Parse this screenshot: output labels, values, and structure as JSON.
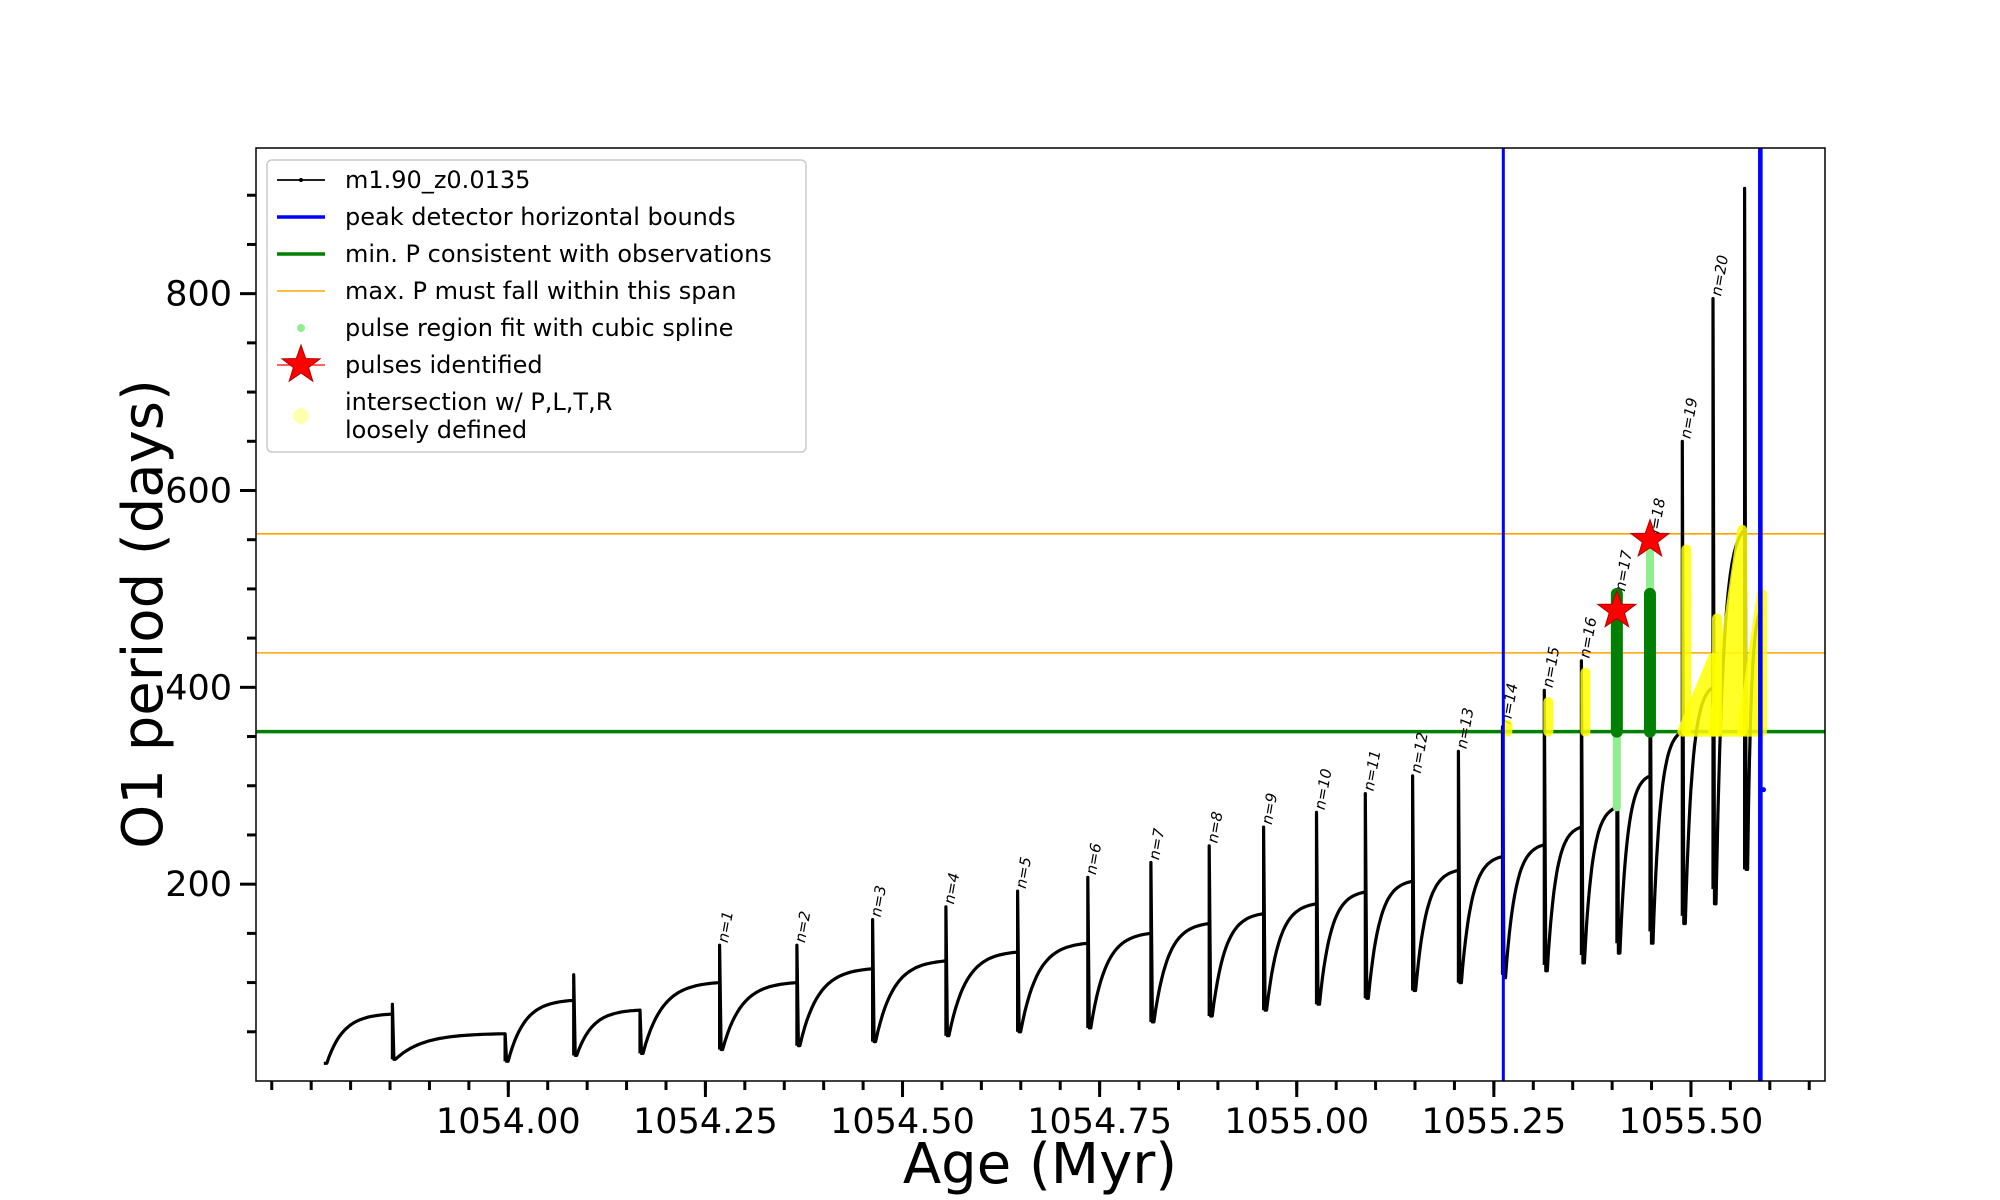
{
  "chart_data": {
    "type": "line",
    "title": "",
    "xlabel": "Age (Myr)",
    "ylabel": "O1 period (days)",
    "xlim": [
      1053.68,
      1055.67
    ],
    "ylim": [
      0,
      948
    ],
    "x_ticks": [
      1054.0,
      1054.25,
      1054.5,
      1054.75,
      1055.0,
      1055.25,
      1055.5
    ],
    "x_tick_labels": [
      "1054.00",
      "1054.25",
      "1054.50",
      "1054.75",
      "1055.00",
      "1055.25",
      "1055.50"
    ],
    "y_ticks": [
      200,
      400,
      600,
      800
    ],
    "y_tick_labels": [
      "200",
      "400",
      "600",
      "800"
    ],
    "grid": false,
    "legend_position": "upper-left",
    "colors": {
      "track": "#000000",
      "bounds": "#0000ff",
      "min_p": "#008000",
      "max_p": "#ffa500",
      "spline": "#90ee90",
      "spline_dark": "#008000",
      "star": "#ff0000",
      "loose": "#ffff00"
    },
    "legend": [
      {
        "label": "m1.90_z0.0135",
        "kind": "line-marker",
        "color": "#000000"
      },
      {
        "label": "peak detector horizontal bounds",
        "kind": "line",
        "color": "#0000ff"
      },
      {
        "label": "min. P consistent with observations",
        "kind": "line",
        "color": "#008000"
      },
      {
        "label": "max. P must fall within this span",
        "kind": "thin-line",
        "color": "#ffa500"
      },
      {
        "label": "pulse region fit with cubic spline",
        "kind": "dot",
        "color": "#90ee90"
      },
      {
        "label": "pulses identified",
        "kind": "star",
        "color": "#ff0000"
      },
      {
        "label": "intersection w/ P,L,T,R",
        "label2": "loosely defined",
        "kind": "dot-big",
        "color": "#ffffb0"
      }
    ],
    "pulses": [
      {
        "n": "",
        "t0": 1053.766,
        "t1": 1053.853,
        "base": 18,
        "end": 68,
        "peak": 0,
        "min": 18
      },
      {
        "n": "",
        "t0": 1053.853,
        "t1": 1053.996,
        "base": 22,
        "end": 48,
        "peak": 78,
        "min": 22
      },
      {
        "n": "",
        "t0": 1053.996,
        "t1": 1054.083,
        "base": 20,
        "end": 82,
        "peak": 48,
        "min": 20
      },
      {
        "n": "",
        "t0": 1054.083,
        "t1": 1054.167,
        "base": 26,
        "end": 72,
        "peak": 108,
        "min": 26
      },
      {
        "n": "",
        "t0": 1054.167,
        "t1": 1054.268,
        "base": 28,
        "end": 100,
        "peak": 72,
        "min": 28
      },
      {
        "n": "n=1",
        "t0": 1054.268,
        "t1": 1054.366,
        "base": 32,
        "end": 100,
        "peak": 138,
        "min": 32
      },
      {
        "n": "n=2",
        "t0": 1054.366,
        "t1": 1054.462,
        "base": 36,
        "end": 114,
        "peak": 138,
        "min": 36
      },
      {
        "n": "n=3",
        "t0": 1054.462,
        "t1": 1054.555,
        "base": 40,
        "end": 122,
        "peak": 164,
        "min": 40
      },
      {
        "n": "n=4",
        "t0": 1054.555,
        "t1": 1054.646,
        "base": 46,
        "end": 131,
        "peak": 177,
        "min": 46
      },
      {
        "n": "n=5",
        "t0": 1054.646,
        "t1": 1054.735,
        "base": 50,
        "end": 140,
        "peak": 193,
        "min": 50
      },
      {
        "n": "n=6",
        "t0": 1054.735,
        "t1": 1054.815,
        "base": 54,
        "end": 150,
        "peak": 207,
        "min": 54
      },
      {
        "n": "n=7",
        "t0": 1054.815,
        "t1": 1054.889,
        "base": 60,
        "end": 160,
        "peak": 222,
        "min": 60
      },
      {
        "n": "n=8",
        "t0": 1054.889,
        "t1": 1054.958,
        "base": 66,
        "end": 170,
        "peak": 239,
        "min": 66
      },
      {
        "n": "n=9",
        "t0": 1054.958,
        "t1": 1055.025,
        "base": 72,
        "end": 180,
        "peak": 258,
        "min": 72
      },
      {
        "n": "n=10",
        "t0": 1055.025,
        "t1": 1055.087,
        "base": 78,
        "end": 192,
        "peak": 273,
        "min": 78
      },
      {
        "n": "n=11",
        "t0": 1055.087,
        "t1": 1055.147,
        "base": 84,
        "end": 203,
        "peak": 292,
        "min": 84
      },
      {
        "n": "n=12",
        "t0": 1055.147,
        "t1": 1055.205,
        "base": 92,
        "end": 214,
        "peak": 310,
        "min": 92
      },
      {
        "n": "n=13",
        "t0": 1055.205,
        "t1": 1055.261,
        "base": 100,
        "end": 228,
        "peak": 335,
        "min": 100
      },
      {
        "n": "n=14",
        "t0": 1055.261,
        "t1": 1055.314,
        "base": 108,
        "end": 240,
        "peak": 360,
        "min": 105
      },
      {
        "n": "n=15",
        "t0": 1055.314,
        "t1": 1055.361,
        "base": 118,
        "end": 258,
        "peak": 397,
        "min": 112
      },
      {
        "n": "n=16",
        "t0": 1055.361,
        "t1": 1055.406,
        "base": 128,
        "end": 278,
        "peak": 427,
        "min": 120
      },
      {
        "n": "n=17",
        "t0": 1055.406,
        "t1": 1055.448,
        "base": 140,
        "end": 310,
        "peak": 495,
        "min": 130
      },
      {
        "n": "n=18",
        "t0": 1055.448,
        "t1": 1055.489,
        "base": 152,
        "end": 355,
        "peak": 548,
        "min": 140
      },
      {
        "n": "n=19",
        "t0": 1055.489,
        "t1": 1055.528,
        "base": 168,
        "end": 400,
        "peak": 650,
        "min": 160
      },
      {
        "n": "n=20",
        "t0": 1055.528,
        "t1": 1055.568,
        "base": 195,
        "end": 560,
        "peak": 795,
        "min": 180
      },
      {
        "n": "",
        "t0": 1055.568,
        "t1": 1055.59,
        "base": 215,
        "end": 480,
        "peak": 907,
        "min": 215
      }
    ],
    "bounds_x": [
      1055.262,
      1055.587,
      1055.589
    ],
    "min_p_y": 355,
    "max_p_span": [
      435,
      556
    ],
    "spline_regions": [
      {
        "x": 1055.406,
        "from": 278,
        "to": 495
      },
      {
        "x": 1055.448,
        "from": 355,
        "to": 548
      }
    ],
    "dark_spline_bars": [
      {
        "x": 1055.406,
        "from": 355,
        "to": 495
      },
      {
        "x": 1055.448,
        "from": 355,
        "to": 495
      }
    ],
    "stars": [
      {
        "x": 1055.406,
        "y": 478
      },
      {
        "x": 1055.448,
        "y": 550
      }
    ],
    "loose_points": [
      {
        "x": 1055.262,
        "y": 362
      },
      {
        "x": 1055.314,
        "y": 385
      },
      {
        "x": 1055.361,
        "y": 415
      },
      {
        "x": 1055.489,
        "y": 540
      },
      {
        "x": 1055.528,
        "y": 470
      }
    ],
    "loose_bands": [
      {
        "x0": 1055.489,
        "x1": 1055.528,
        "from": 355,
        "to": 430
      },
      {
        "x0": 1055.528,
        "x1": 1055.565,
        "from": 355,
        "to": 560
      },
      {
        "x0": 1055.565,
        "x1": 1055.59,
        "from": 355,
        "to": 495
      }
    ],
    "outlier_point": {
      "x": 1055.592,
      "y": 296
    }
  }
}
